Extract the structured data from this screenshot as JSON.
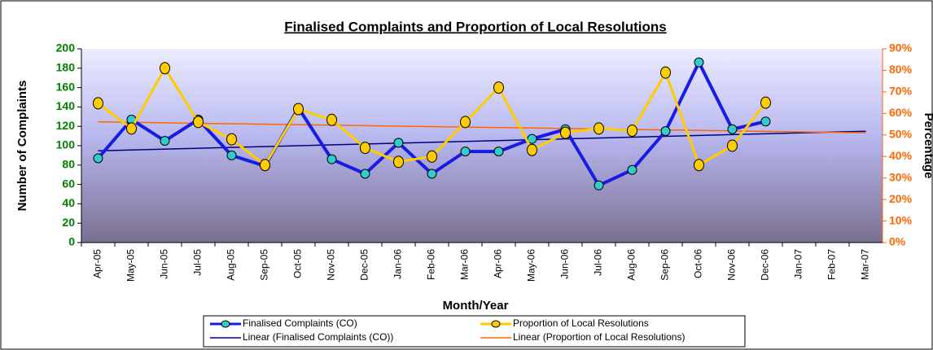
{
  "chart_data": {
    "type": "line",
    "title": "Finalised Complaints and Proportion of Local Resolutions",
    "x_label": "Month/Year",
    "y_label": "Number of Complaints",
    "y2_label": "Percentage",
    "categories": [
      "Apr-05",
      "May-05",
      "Jun-05",
      "Jul-05",
      "Aug-05",
      "Sep-05",
      "Oct-05",
      "Nov-05",
      "Dec-05",
      "Jan-06",
      "Feb-06",
      "Mar-06",
      "Apr-06",
      "May-06",
      "Jun-06",
      "Jul-06",
      "Aug-06",
      "Sep-06",
      "Oct-06",
      "Nov-06",
      "Dec-06",
      "Jan-07",
      "Feb-07",
      "Mar-07"
    ],
    "ylim": [
      0,
      200
    ],
    "yticks": [
      0,
      20,
      40,
      60,
      80,
      100,
      120,
      140,
      160,
      180,
      200
    ],
    "y2lim": [
      0,
      90
    ],
    "y2ticks": [
      {
        "value": 0,
        "label": "0%"
      },
      {
        "value": 10,
        "label": "10%"
      },
      {
        "value": 20,
        "label": "20%"
      },
      {
        "value": 30,
        "label": "30%"
      },
      {
        "value": 40,
        "label": "40%"
      },
      {
        "value": 50,
        "label": "50%"
      },
      {
        "value": 60,
        "label": "60%"
      },
      {
        "value": 70,
        "label": "70%"
      },
      {
        "value": 80,
        "label": "80%"
      },
      {
        "value": 90,
        "label": "90%"
      }
    ],
    "legend": "bottom",
    "series": [
      {
        "name": "Finalised Complaints (CO)",
        "color": "#1a1ae6",
        "marker_color": "#33cccc",
        "values": [
          87,
          127,
          105,
          127,
          90,
          79,
          139,
          86,
          71,
          103,
          71,
          94,
          94,
          107,
          117,
          59,
          75,
          115,
          186,
          117,
          125,
          null,
          null,
          null
        ]
      },
      {
        "name": "Proportion of Local Resolutions",
        "color": "#ffcc00",
        "marker_color": "#ffcc00",
        "axis": "y2",
        "values": [
          64.7,
          53,
          81,
          56,
          48,
          36,
          62,
          57,
          44,
          37.5,
          40,
          56,
          72,
          43,
          51,
          53,
          52,
          79,
          36,
          45,
          65,
          null,
          null,
          null
        ]
      },
      {
        "name": "Linear (Finalised Complaints (CO))",
        "color": "#000080",
        "trend_of": 0
      },
      {
        "name": "Linear (Proportion of Local Resolutions)",
        "color": "#ff6600",
        "trend_of": 1,
        "axis": "y2"
      }
    ]
  }
}
